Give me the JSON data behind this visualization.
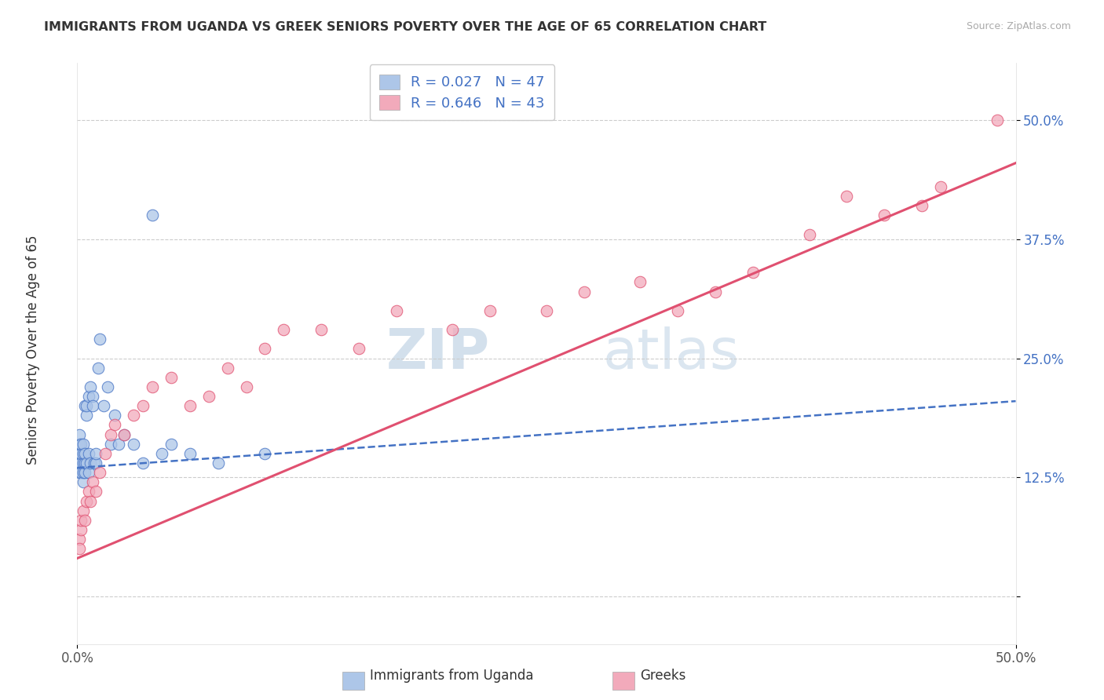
{
  "title": "IMMIGRANTS FROM UGANDA VS GREEK SENIORS POVERTY OVER THE AGE OF 65 CORRELATION CHART",
  "source": "Source: ZipAtlas.com",
  "ylabel": "Seniors Poverty Over the Age of 65",
  "watermark_zip": "ZIP",
  "watermark_atlas": "atlas",
  "y_ticks": [
    0.0,
    0.125,
    0.25,
    0.375,
    0.5
  ],
  "y_tick_labels": [
    "",
    "12.5%",
    "25.0%",
    "37.5%",
    "50.0%"
  ],
  "x_lim": [
    0.0,
    0.5
  ],
  "y_lim": [
    -0.05,
    0.56
  ],
  "legend_r1": "R = 0.027",
  "legend_n1": "N = 47",
  "legend_r2": "R = 0.646",
  "legend_n2": "N = 43",
  "series1_color": "#adc6e8",
  "series2_color": "#f2aabb",
  "line1_color": "#4472c4",
  "line2_color": "#e05070",
  "uganda_x": [
    0.001,
    0.001,
    0.001,
    0.001,
    0.001,
    0.002,
    0.002,
    0.002,
    0.002,
    0.003,
    0.003,
    0.003,
    0.003,
    0.003,
    0.004,
    0.004,
    0.004,
    0.004,
    0.005,
    0.005,
    0.005,
    0.006,
    0.006,
    0.006,
    0.007,
    0.007,
    0.008,
    0.008,
    0.009,
    0.01,
    0.01,
    0.011,
    0.012,
    0.014,
    0.016,
    0.018,
    0.02,
    0.022,
    0.025,
    0.03,
    0.035,
    0.04,
    0.045,
    0.05,
    0.06,
    0.075,
    0.1
  ],
  "uganda_y": [
    0.13,
    0.14,
    0.15,
    0.16,
    0.17,
    0.14,
    0.15,
    0.16,
    0.13,
    0.12,
    0.13,
    0.14,
    0.15,
    0.16,
    0.13,
    0.14,
    0.15,
    0.2,
    0.14,
    0.19,
    0.2,
    0.13,
    0.15,
    0.21,
    0.14,
    0.22,
    0.21,
    0.2,
    0.14,
    0.14,
    0.15,
    0.24,
    0.27,
    0.2,
    0.22,
    0.16,
    0.19,
    0.16,
    0.17,
    0.16,
    0.14,
    0.4,
    0.15,
    0.16,
    0.15,
    0.14,
    0.15
  ],
  "greeks_x": [
    0.001,
    0.001,
    0.002,
    0.002,
    0.003,
    0.004,
    0.005,
    0.006,
    0.007,
    0.008,
    0.01,
    0.012,
    0.015,
    0.018,
    0.02,
    0.025,
    0.03,
    0.035,
    0.04,
    0.05,
    0.06,
    0.07,
    0.08,
    0.09,
    0.1,
    0.11,
    0.13,
    0.15,
    0.17,
    0.2,
    0.22,
    0.25,
    0.27,
    0.3,
    0.32,
    0.34,
    0.36,
    0.39,
    0.41,
    0.43,
    0.45,
    0.46,
    0.49
  ],
  "greeks_y": [
    0.06,
    0.05,
    0.07,
    0.08,
    0.09,
    0.08,
    0.1,
    0.11,
    0.1,
    0.12,
    0.11,
    0.13,
    0.15,
    0.17,
    0.18,
    0.17,
    0.19,
    0.2,
    0.22,
    0.23,
    0.2,
    0.21,
    0.24,
    0.22,
    0.26,
    0.28,
    0.28,
    0.26,
    0.3,
    0.28,
    0.3,
    0.3,
    0.32,
    0.33,
    0.3,
    0.32,
    0.34,
    0.38,
    0.42,
    0.4,
    0.41,
    0.43,
    0.5
  ],
  "trend1_x0": 0.0,
  "trend1_x1": 0.5,
  "trend1_y0": 0.135,
  "trend1_y1": 0.205,
  "trend2_x0": 0.0,
  "trend2_x1": 0.5,
  "trend2_y0": 0.04,
  "trend2_y1": 0.455
}
